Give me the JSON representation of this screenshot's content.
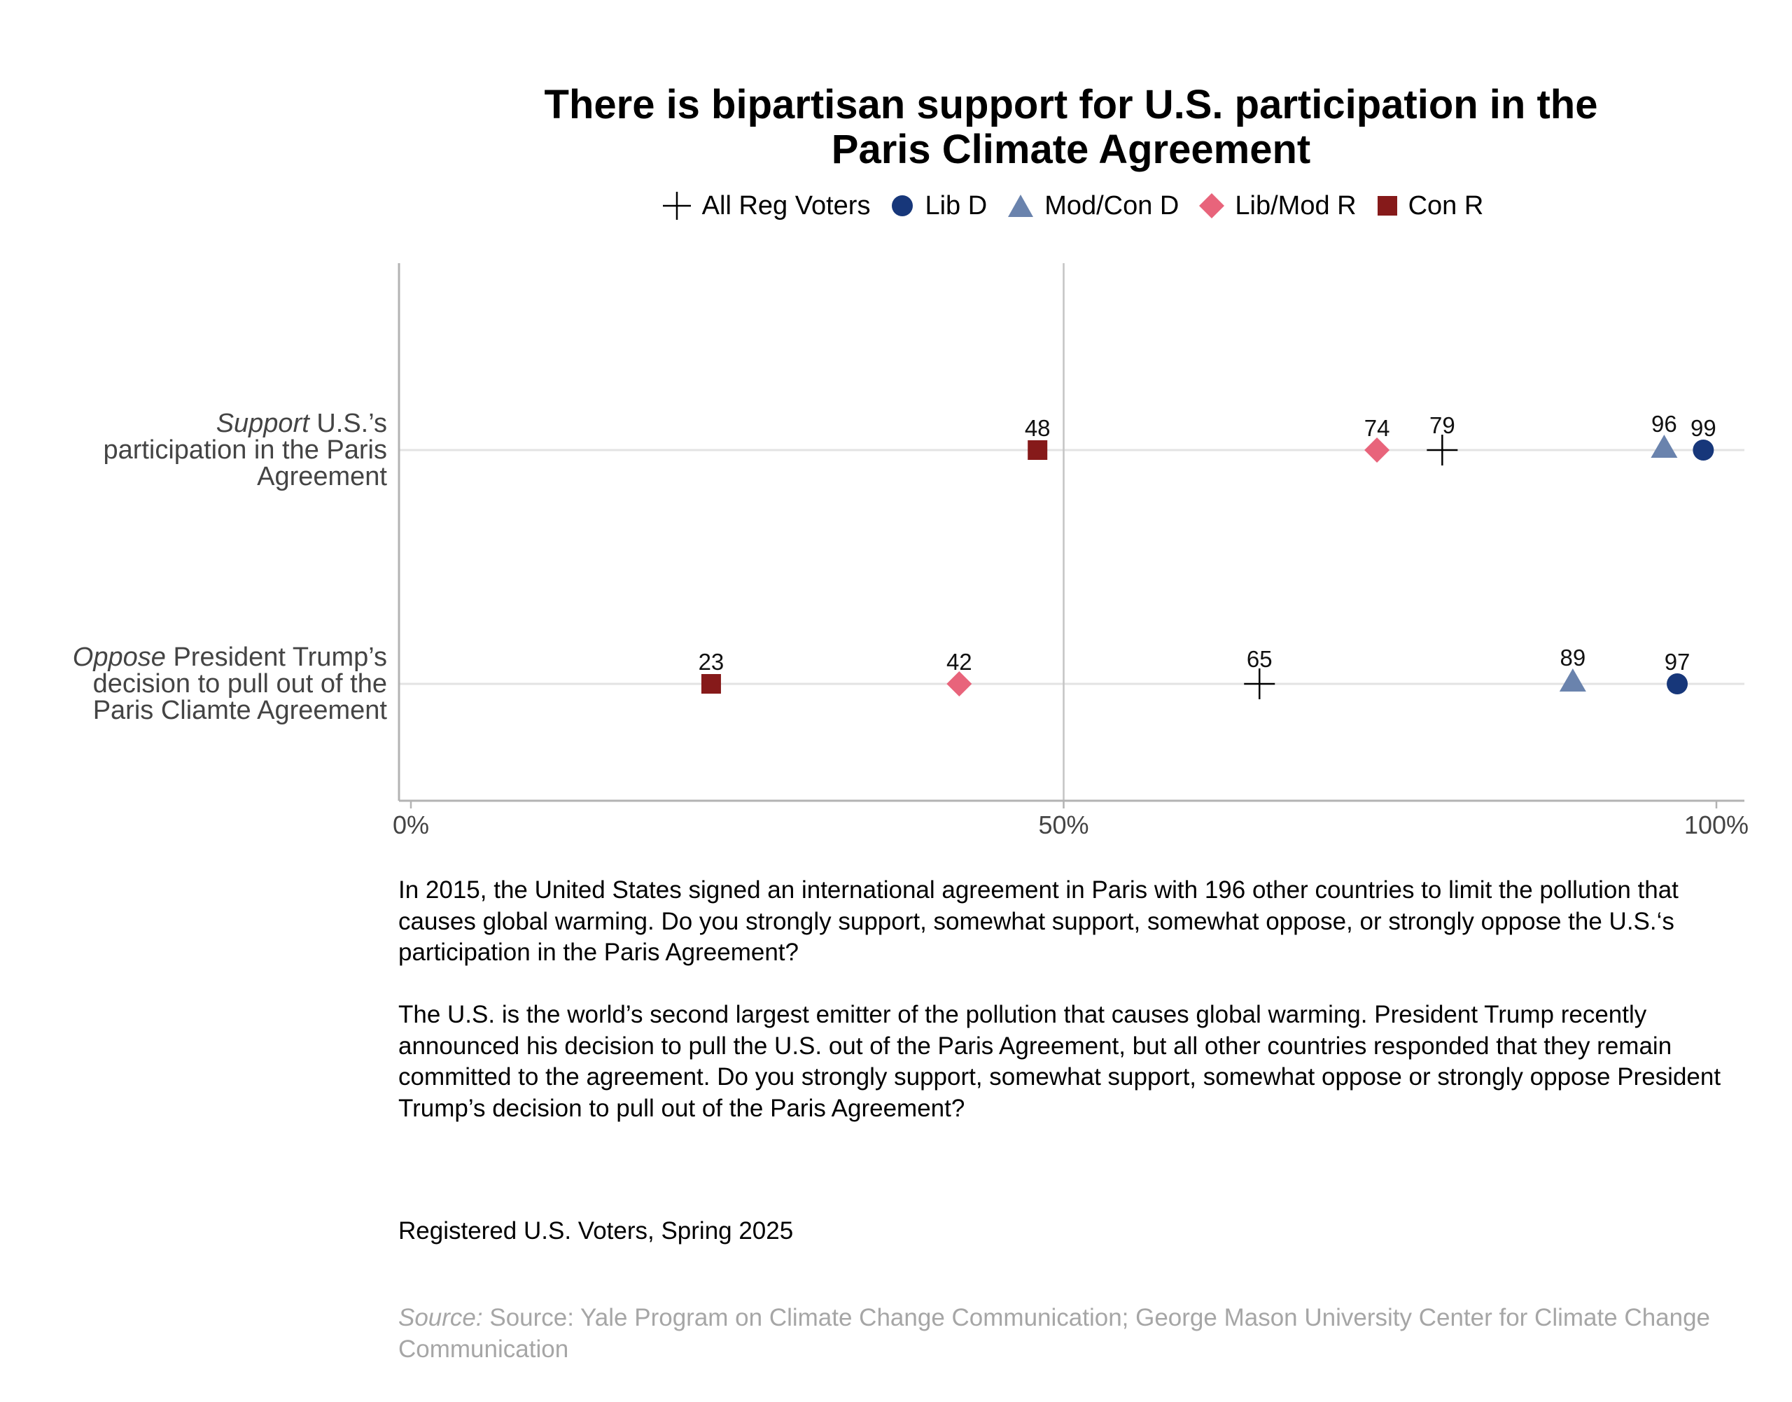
{
  "chart_data": {
    "type": "scatter",
    "title_lines": [
      "There is bipartisan support for U.S. participation in the",
      "Paris Climate Agreement"
    ],
    "xlim": [
      0,
      100
    ],
    "x_ticks": [
      0,
      50,
      100
    ],
    "x_tick_labels": [
      "0%",
      "50%",
      "100%"
    ],
    "legend_position": "top",
    "series": [
      {
        "name": "All Reg Voters",
        "marker": "cross",
        "color": "#000000",
        "values": [
          79,
          65
        ]
      },
      {
        "name": "Lib D",
        "marker": "circle",
        "color": "#17377a",
        "values": [
          99,
          97
        ]
      },
      {
        "name": "Mod/Con D",
        "marker": "triangle",
        "color": "#6a83ad",
        "values": [
          96,
          89
        ]
      },
      {
        "name": "Lib/Mod R",
        "marker": "diamond",
        "color": "#e8647b",
        "values": [
          74,
          42
        ]
      },
      {
        "name": "Con R",
        "marker": "square",
        "color": "#861a1a",
        "values": [
          48,
          23
        ]
      }
    ],
    "categories": [
      {
        "emph": "Support",
        "rest": " U.S.’s",
        "line2": "participation in the Paris",
        "line3": "Agreement"
      },
      {
        "emph": "Oppose",
        "rest": " President Trump’s",
        "line2": "decision to pull out of the",
        "line3": "Paris Cliamte Agreement"
      }
    ],
    "reference_line": 50
  },
  "notes": {
    "question1": "In 2015, the United States signed an international agreement in Paris with 196 other countries to limit the pollution that causes global warming. Do you strongly support, somewhat support, somewhat oppose, or strongly oppose the U.S.‘s participation in the Paris Agreement?",
    "question2": "The U.S. is the world’s second largest emitter of the pollution that causes global warming. President Trump recently announced his decision to pull the U.S. out of the Paris Agreement, but all other countries responded that they remain committed to the agreement. Do you strongly support, somewhat support, somewhat oppose or strongly oppose President Trump’s decision to pull out of the Paris Agreement?",
    "sample": "Registered U.S. Voters, Spring 2025",
    "source_label": "Source:",
    "source_text": " Source: Yale Program on Climate Change Communication; George Mason University Center for Climate Change Communication"
  }
}
